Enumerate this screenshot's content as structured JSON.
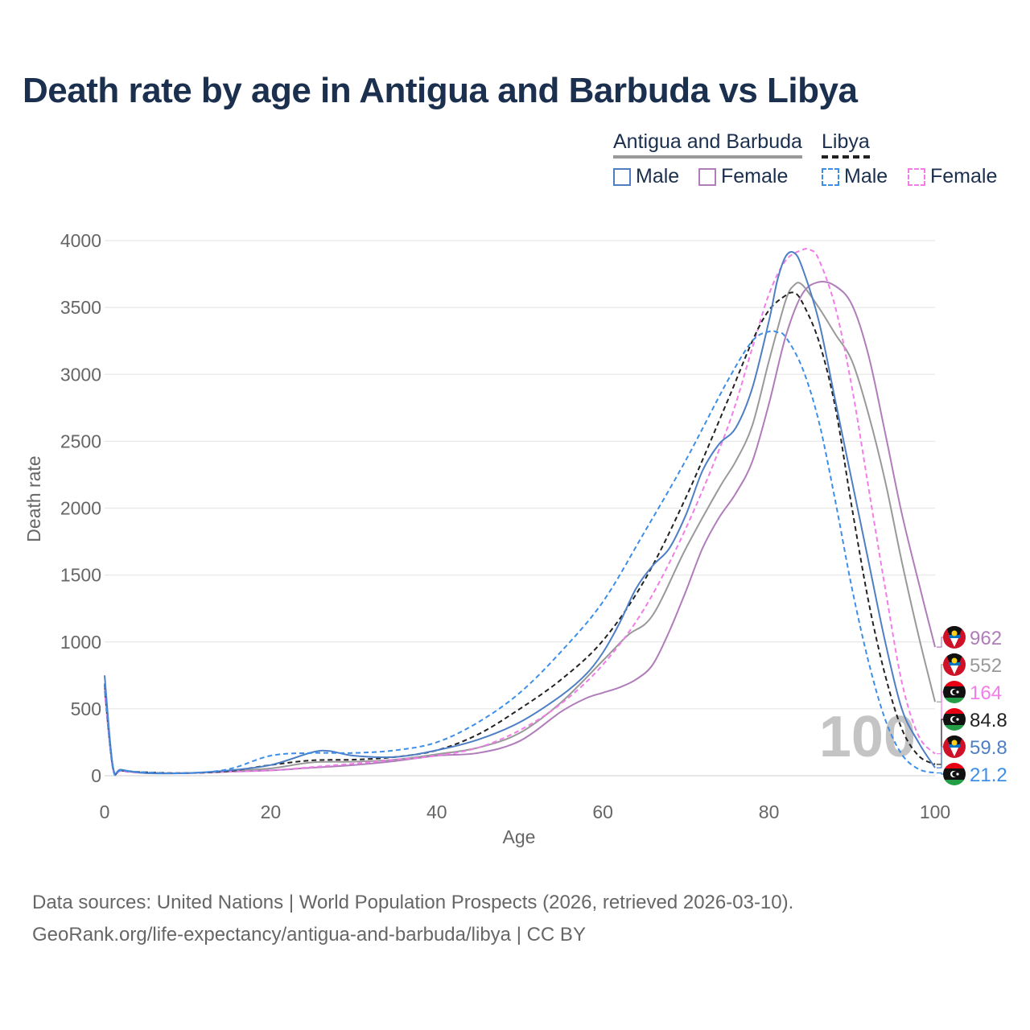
{
  "title": "Death rate by age in Antigua and Barbuda vs Libya",
  "legend": {
    "groups": [
      {
        "name": "Antigua and Barbuda",
        "line_style": "solid",
        "color": "#999999"
      },
      {
        "name": "Libya",
        "line_style": "dashed",
        "color": "#222222"
      }
    ],
    "items": [
      {
        "label": "Male",
        "group": "Antigua and Barbuda",
        "color": "#4e7fc4"
      },
      {
        "label": "Female",
        "group": "Antigua and Barbuda",
        "color": "#b07cba"
      },
      {
        "label": "Male",
        "group": "Libya",
        "color": "#3d8ee8"
      },
      {
        "label": "Female",
        "group": "Libya",
        "color": "#f27ce8"
      }
    ]
  },
  "chart_data": {
    "type": "line",
    "title": "Death rate by age in Antigua and Barbuda vs Libya",
    "xlabel": "Age",
    "ylabel": "Death rate",
    "xlim": [
      0,
      100
    ],
    "ylim": [
      0,
      4000
    ],
    "xticks": [
      0,
      20,
      40,
      60,
      80,
      100
    ],
    "yticks": [
      0,
      500,
      1000,
      1500,
      2000,
      2500,
      3000,
      3500,
      4000
    ],
    "watermark": "100",
    "series": [
      {
        "name": "Antigua and Barbuda Female",
        "color": "#b07cba",
        "dashed": false,
        "x": [
          0,
          1,
          2,
          5,
          10,
          15,
          20,
          25,
          30,
          35,
          40,
          45,
          50,
          55,
          58,
          60,
          62,
          64,
          66,
          68,
          70,
          72,
          74,
          76,
          78,
          80,
          82,
          84,
          86,
          88,
          90,
          92,
          94,
          96,
          98,
          100
        ],
        "y": [
          640,
          60,
          40,
          20,
          20,
          30,
          40,
          60,
          80,
          110,
          150,
          170,
          260,
          480,
          580,
          620,
          660,
          720,
          830,
          1080,
          1380,
          1700,
          1930,
          2110,
          2350,
          2780,
          3280,
          3600,
          3690,
          3660,
          3520,
          3140,
          2560,
          1960,
          1450,
          962
        ]
      },
      {
        "name": "Antigua and Barbuda both",
        "color": "#999999",
        "dashed": false,
        "x": [
          0,
          1,
          2,
          5,
          10,
          15,
          20,
          25,
          30,
          35,
          40,
          45,
          50,
          55,
          60,
          63,
          66,
          70,
          74,
          76,
          78,
          80,
          82,
          83,
          84,
          86,
          88,
          90,
          92,
          94,
          96,
          98,
          100
        ],
        "y": [
          690,
          65,
          40,
          20,
          20,
          35,
          55,
          100,
          105,
          120,
          160,
          210,
          320,
          550,
          860,
          1050,
          1200,
          1700,
          2150,
          2350,
          2620,
          3100,
          3550,
          3665,
          3670,
          3500,
          3300,
          3100,
          2700,
          2200,
          1600,
          1050,
          552
        ]
      },
      {
        "name": "Libya Female",
        "color": "#f27ce8",
        "dashed": true,
        "x": [
          0,
          1,
          2,
          5,
          10,
          15,
          20,
          25,
          30,
          35,
          40,
          45,
          50,
          55,
          60,
          65,
          70,
          75,
          78,
          80,
          82,
          84,
          85,
          86,
          88,
          90,
          92,
          94,
          96,
          98,
          100
        ],
        "y": [
          640,
          55,
          35,
          20,
          20,
          30,
          40,
          65,
          90,
          120,
          150,
          210,
          340,
          540,
          830,
          1250,
          1850,
          2600,
          3200,
          3600,
          3850,
          3930,
          3930,
          3860,
          3500,
          2900,
          2150,
          1400,
          700,
          300,
          164
        ]
      },
      {
        "name": "Libya both",
        "color": "#222222",
        "dashed": true,
        "x": [
          0,
          1,
          2,
          5,
          10,
          15,
          20,
          25,
          30,
          35,
          40,
          45,
          50,
          55,
          60,
          65,
          70,
          75,
          78,
          80,
          82,
          83,
          84,
          86,
          88,
          90,
          92,
          94,
          96,
          98,
          100
        ],
        "y": [
          680,
          60,
          40,
          25,
          20,
          35,
          80,
          115,
          120,
          140,
          190,
          310,
          500,
          720,
          1010,
          1460,
          2080,
          2800,
          3250,
          3480,
          3590,
          3610,
          3540,
          3250,
          2750,
          2000,
          1300,
          750,
          350,
          150,
          84.8
        ]
      },
      {
        "name": "Antigua and Barbuda Male",
        "color": "#4e7fc4",
        "dashed": false,
        "x": [
          0,
          1,
          2,
          5,
          10,
          15,
          20,
          25,
          27,
          30,
          35,
          40,
          45,
          50,
          55,
          58,
          60,
          62,
          64,
          66,
          68,
          70,
          72,
          74,
          76,
          78,
          80,
          81,
          82,
          83,
          84,
          86,
          88,
          90,
          92,
          94,
          96,
          98,
          100
        ],
        "y": [
          750,
          70,
          45,
          20,
          20,
          40,
          80,
          175,
          185,
          150,
          140,
          190,
          270,
          400,
          600,
          760,
          920,
          1140,
          1400,
          1570,
          1700,
          1950,
          2280,
          2480,
          2600,
          2900,
          3400,
          3700,
          3880,
          3910,
          3800,
          3400,
          2800,
          2200,
          1600,
          1000,
          500,
          250,
          59.8
        ]
      },
      {
        "name": "Libya Male",
        "color": "#3d8ee8",
        "dashed": true,
        "x": [
          0,
          1,
          2,
          5,
          10,
          15,
          20,
          25,
          30,
          35,
          40,
          45,
          50,
          55,
          60,
          65,
          70,
          75,
          78,
          80,
          81,
          82,
          84,
          86,
          88,
          90,
          92,
          94,
          96,
          98,
          100
        ],
        "y": [
          690,
          55,
          40,
          25,
          20,
          50,
          150,
          170,
          170,
          190,
          250,
          400,
          620,
          930,
          1300,
          1820,
          2360,
          2950,
          3250,
          3320,
          3315,
          3280,
          3050,
          2650,
          2050,
          1400,
          850,
          420,
          160,
          50,
          21.2
        ]
      }
    ],
    "end_labels": [
      {
        "text": "962",
        "value": 962,
        "color": "#b07cba",
        "country": "Antigua and Barbuda"
      },
      {
        "text": "552",
        "value": 552,
        "color": "#999999",
        "country": "Antigua and Barbuda"
      },
      {
        "text": "164",
        "value": 164,
        "color": "#f27ce8",
        "country": "Libya"
      },
      {
        "text": "84.8",
        "value": 84.8,
        "color": "#222222",
        "country": "Libya"
      },
      {
        "text": "59.8",
        "value": 59.8,
        "color": "#4e7fc4",
        "country": "Antigua and Barbuda"
      },
      {
        "text": "21.2",
        "value": 21.2,
        "color": "#3d8ee8",
        "country": "Libya"
      }
    ]
  },
  "footer": {
    "line1": "Data sources: United Nations | World Population Prospects (2026, retrieved 2026-03-10).",
    "line2": "GeoRank.org/life-expectancy/antigua-and-barbuda/libya | CC BY"
  }
}
